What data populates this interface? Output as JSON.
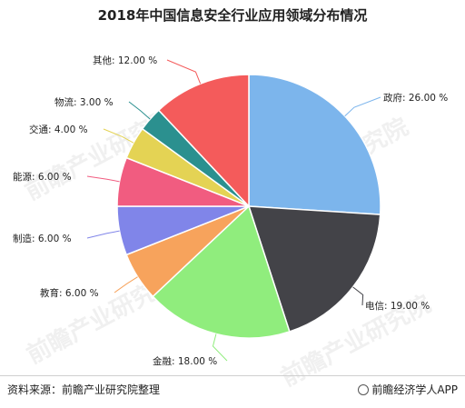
{
  "title": "2018年中国信息安全行业应用领域分布情况",
  "footer": {
    "source": "资料来源：前瞻产业研究院整理",
    "brand": "前瞻经济学人APP",
    "brand_icon": "brand-logo-icon"
  },
  "watermarks": [
    "前瞻产业研究院",
    "前瞻产业研究院",
    "前瞻产业研究院",
    "前瞻产业研究院"
  ],
  "chart_data": {
    "type": "pie",
    "title": "2018年中国信息安全行业应用领域分布情况",
    "start_angle_deg": 0,
    "direction": "clockwise",
    "slices": [
      {
        "label": "政府",
        "value": 26.0,
        "text": "政府: 26.00 %",
        "color": "#7cb5ec"
      },
      {
        "label": "电信",
        "value": 19.0,
        "text": "电信: 19.00 %",
        "color": "#434348"
      },
      {
        "label": "金融",
        "value": 18.0,
        "text": "金融: 18.00 %",
        "color": "#90ed7d"
      },
      {
        "label": "教育",
        "value": 6.0,
        "text": "教育: 6.00 %",
        "color": "#f7a35c"
      },
      {
        "label": "制造",
        "value": 6.0,
        "text": "制造: 6.00 %",
        "color": "#8085e9"
      },
      {
        "label": "能源",
        "value": 6.0,
        "text": "能源: 6.00 %",
        "color": "#f15c80"
      },
      {
        "label": "交通",
        "value": 4.0,
        "text": "交通: 4.00 %",
        "color": "#e4d354"
      },
      {
        "label": "物流",
        "value": 3.0,
        "text": "物流: 3.00 %",
        "color": "#2b908f"
      },
      {
        "label": "其他",
        "value": 12.0,
        "text": "其他: 12.00 %",
        "color": "#f45b5b"
      }
    ]
  }
}
